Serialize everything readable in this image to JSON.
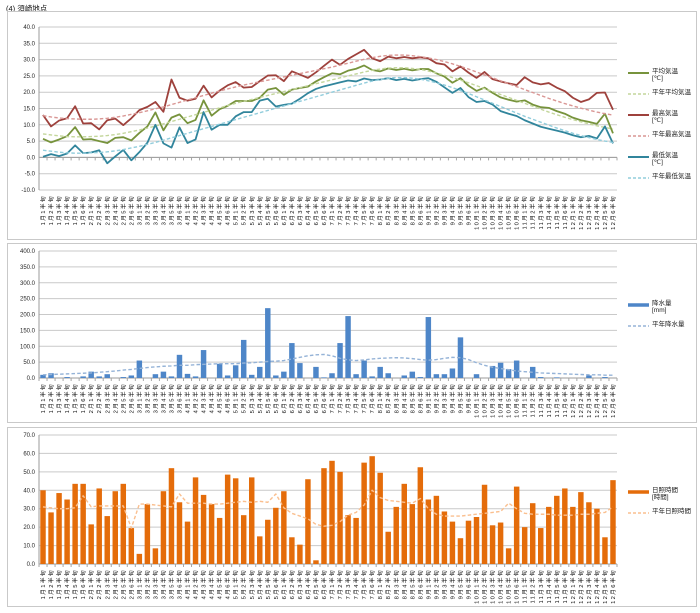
{
  "title": "(4) 須崎地点",
  "categories": [
    "1月1半旬",
    "1月2半旬",
    "1月3半旬",
    "1月4半旬",
    "1月5半旬",
    "1月6半旬",
    "2月1半旬",
    "2月2半旬",
    "2月3半旬",
    "2月4半旬",
    "2月5半旬",
    "2月6半旬",
    "3月1半旬",
    "3月2半旬",
    "3月3半旬",
    "3月4半旬",
    "3月5半旬",
    "3月6半旬",
    "4月1半旬",
    "4月2半旬",
    "4月3半旬",
    "4月4半旬",
    "4月5半旬",
    "4月6半旬",
    "5月1半旬",
    "5月2半旬",
    "5月3半旬",
    "5月4半旬",
    "5月5半旬",
    "5月6半旬",
    "6月1半旬",
    "6月2半旬",
    "6月3半旬",
    "6月4半旬",
    "6月5半旬",
    "6月6半旬",
    "7月1半旬",
    "7月2半旬",
    "7月3半旬",
    "7月4半旬",
    "7月5半旬",
    "7月6半旬",
    "8月1半旬",
    "8月2半旬",
    "8月3半旬",
    "8月4半旬",
    "8月5半旬",
    "8月6半旬",
    "9月1半旬",
    "9月2半旬",
    "9月3半旬",
    "9月4半旬",
    "9月5半旬",
    "9月6半旬",
    "10月1半旬",
    "10月2半旬",
    "10月3半旬",
    "10月4半旬",
    "10月5半旬",
    "10月6半旬",
    "11月1半旬",
    "11月2半旬",
    "11月3半旬",
    "11月4半旬",
    "11月5半旬",
    "11月6半旬",
    "12月1半旬",
    "12月2半旬",
    "12月3半旬",
    "12月4半旬",
    "12月5半旬",
    "12月6半旬"
  ],
  "chart_data": [
    {
      "type": "line",
      "title": "気温",
      "ylim": [
        -10,
        40
      ],
      "yticks": [
        "40.0",
        "35.0",
        "30.0",
        "25.0",
        "20.0",
        "15.0",
        "10.0",
        "5.0",
        "0.0",
        "-5.0",
        "-10.0"
      ],
      "grid": true,
      "legend_position": "right",
      "series": [
        {
          "name": "平均気温",
          "unit": "[℃]",
          "style": "solid",
          "color": "#77933C",
          "values": [
            5.7,
            4.6,
            5.5,
            6.5,
            9.3,
            5.5,
            5.6,
            5.0,
            4.4,
            6.0,
            6.2,
            5.2,
            7.5,
            9.5,
            13.8,
            8.3,
            12.2,
            13.2,
            10.5,
            11.5,
            17.5,
            12.8,
            14.8,
            15.8,
            17.3,
            17.3,
            17.3,
            18.3,
            20.8,
            21.3,
            19.2,
            20.8,
            21.3,
            21.7,
            23.3,
            24.6,
            25.8,
            25.5,
            26.6,
            27.2,
            28.2,
            26.8,
            26.4,
            27.3,
            26.8,
            27.2,
            26.7,
            27.1,
            27.1,
            25.8,
            24.8,
            22.9,
            24.3,
            22.0,
            20.4,
            21.4,
            19.8,
            18.4,
            17.7,
            17.1,
            17.5,
            16.2,
            15.4,
            15.2,
            14.2,
            13.4,
            12.2,
            11.4,
            10.9,
            10.3,
            13.4,
            7.4
          ]
        },
        {
          "name": "平年平均気温",
          "unit": "",
          "style": "dashed",
          "color": "#C3D69B",
          "values": [
            7.2,
            6.9,
            6.6,
            6.4,
            6.3,
            6.3,
            6.4,
            6.5,
            6.7,
            7.0,
            7.4,
            7.9,
            8.4,
            9.0,
            9.6,
            10.3,
            11.0,
            11.7,
            12.4,
            13.1,
            13.8,
            14.5,
            15.2,
            15.9,
            16.6,
            17.2,
            17.8,
            18.4,
            19.0,
            19.6,
            20.2,
            20.8,
            21.4,
            22.0,
            22.6,
            23.2,
            23.8,
            24.4,
            25.0,
            25.6,
            26.2,
            26.7,
            27.1,
            27.4,
            27.5,
            27.5,
            27.3,
            27.0,
            26.5,
            25.9,
            25.2,
            24.5,
            23.7,
            22.9,
            22.0,
            21.1,
            20.2,
            19.3,
            18.4,
            17.5,
            16.6,
            15.7,
            14.8,
            13.9,
            13.1,
            12.3,
            11.6,
            10.9,
            10.3,
            9.7,
            9.2,
            8.7
          ]
        },
        {
          "name": "最高気温",
          "unit": "[℃]",
          "style": "solid",
          "color": "#9E413C",
          "values": [
            13.0,
            9.5,
            11.3,
            12.0,
            15.7,
            10.4,
            10.5,
            8.6,
            11.4,
            11.9,
            9.9,
            12.0,
            14.5,
            15.5,
            17.0,
            14.0,
            23.9,
            18.3,
            17.4,
            18.0,
            22.0,
            18.4,
            20.5,
            22.1,
            23.1,
            21.4,
            21.6,
            23.4,
            25.1,
            25.2,
            23.4,
            26.4,
            25.4,
            24.4,
            26.1,
            28.1,
            30.0,
            28.4,
            30.2,
            31.6,
            33.0,
            30.4,
            29.5,
            30.9,
            30.4,
            30.8,
            30.4,
            30.7,
            30.4,
            28.9,
            28.5,
            26.4,
            27.9,
            26.0,
            24.4,
            26.2,
            24.0,
            23.3,
            22.7,
            22.2,
            24.6,
            23.0,
            22.4,
            22.8,
            21.4,
            20.3,
            18.3,
            17.0,
            17.8,
            19.8,
            19.9,
            14.6
          ]
        },
        {
          "name": "平年最高気温",
          "unit": "",
          "style": "dashed",
          "color": "#D99694",
          "values": [
            12.8,
            12.4,
            12.1,
            11.9,
            11.8,
            11.7,
            11.7,
            11.8,
            12.0,
            12.3,
            12.7,
            13.2,
            13.7,
            14.3,
            14.9,
            15.5,
            16.2,
            16.9,
            17.6,
            18.3,
            19.0,
            19.7,
            20.4,
            21.0,
            21.6,
            22.2,
            22.7,
            23.2,
            23.7,
            24.2,
            24.7,
            25.2,
            25.7,
            26.2,
            26.7,
            27.2,
            27.7,
            28.3,
            28.9,
            29.5,
            30.1,
            30.6,
            31.0,
            31.3,
            31.4,
            31.4,
            31.2,
            30.9,
            30.5,
            30.0,
            29.4,
            28.7,
            27.9,
            27.1,
            26.2,
            25.3,
            24.4,
            23.5,
            22.6,
            21.7,
            20.8,
            19.9,
            19.0,
            18.1,
            17.3,
            16.5,
            15.8,
            15.1,
            14.5,
            13.9,
            13.4,
            13.0
          ]
        },
        {
          "name": "最低気温",
          "unit": "[℃]",
          "style": "solid",
          "color": "#31859C",
          "values": [
            0.2,
            1.0,
            0.4,
            1.2,
            3.7,
            1.3,
            1.5,
            2.2,
            -1.8,
            0.3,
            2.3,
            -0.9,
            1.6,
            4.5,
            10.0,
            4.3,
            3.0,
            9.2,
            4.4,
            5.5,
            13.9,
            8.5,
            10.0,
            10.0,
            12.6,
            13.9,
            13.9,
            17.4,
            18.0,
            15.6,
            16.1,
            16.5,
            18.0,
            19.7,
            21.0,
            21.8,
            22.4,
            23.0,
            23.6,
            23.3,
            24.2,
            23.7,
            23.9,
            24.3,
            23.7,
            24.1,
            23.6,
            24.0,
            24.3,
            23.2,
            21.5,
            19.8,
            21.3,
            18.5,
            17.0,
            17.3,
            16.2,
            14.2,
            13.4,
            12.7,
            11.4,
            10.4,
            9.4,
            8.8,
            8.2,
            7.6,
            6.8,
            6.2,
            6.6,
            5.8,
            9.5,
            4.3
          ]
        },
        {
          "name": "平年最低気温",
          "unit": "",
          "style": "dashed",
          "color": "#92CDDC",
          "values": [
            2.2,
            1.9,
            1.6,
            1.4,
            1.3,
            1.3,
            1.4,
            1.5,
            1.7,
            2.0,
            2.4,
            2.9,
            3.4,
            4.0,
            4.6,
            5.3,
            6.0,
            6.7,
            7.4,
            8.1,
            8.8,
            9.5,
            10.2,
            10.9,
            11.6,
            12.3,
            13.0,
            13.7,
            14.4,
            15.1,
            15.8,
            16.5,
            17.2,
            17.9,
            18.6,
            19.3,
            20.0,
            20.7,
            21.4,
            22.1,
            22.8,
            23.4,
            23.9,
            24.3,
            24.5,
            24.5,
            24.3,
            24.0,
            23.5,
            22.9,
            22.2,
            21.4,
            20.5,
            19.6,
            18.6,
            17.6,
            16.6,
            15.6,
            14.6,
            13.6,
            12.6,
            11.7,
            10.8,
            9.9,
            9.0,
            8.2,
            7.4,
            6.7,
            6.1,
            5.5,
            5.0,
            4.6
          ]
        }
      ]
    },
    {
      "type": "bar",
      "title": "降水量",
      "ylim": [
        0,
        400
      ],
      "yticks": [
        "400.0",
        "350.0",
        "300.0",
        "250.0",
        "200.0",
        "150.0",
        "100.0",
        "50.0",
        "0.0"
      ],
      "grid": true,
      "legend_position": "right",
      "series": [
        {
          "name": "降水量",
          "unit": "[mm]",
          "style": "bar",
          "color": "#4E86C8",
          "values": [
            10,
            15,
            0,
            3,
            0,
            5,
            20,
            5,
            12,
            0,
            3,
            8,
            55,
            0,
            12,
            20,
            5,
            73,
            13,
            5,
            88,
            0,
            45,
            8,
            40,
            120,
            10,
            35,
            220,
            8,
            20,
            110,
            47,
            0,
            35,
            2,
            15,
            110,
            195,
            12,
            55,
            5,
            35,
            15,
            0,
            8,
            20,
            3,
            192,
            12,
            12,
            30,
            128,
            0,
            12,
            0,
            38,
            48,
            28,
            55,
            0,
            35,
            3,
            0,
            2,
            0,
            0,
            0,
            8,
            0,
            3,
            0
          ]
        },
        {
          "name": "平年降水量",
          "unit": "",
          "style": "dashed",
          "color": "#95B3D7",
          "values": [
            10,
            11,
            12,
            13,
            14,
            15,
            16,
            18,
            20,
            22,
            25,
            27,
            30,
            33,
            35,
            37,
            38,
            40,
            40,
            42,
            43,
            44,
            45,
            45,
            45,
            47,
            48,
            50,
            52,
            53,
            55,
            60,
            65,
            70,
            73,
            74,
            70,
            62,
            57,
            55,
            57,
            60,
            62,
            63,
            64,
            63,
            61,
            58,
            56,
            58,
            62,
            65,
            64,
            58,
            48,
            40,
            34,
            30,
            26,
            22,
            20,
            18,
            16,
            15,
            14,
            13,
            12,
            11,
            10,
            10,
            9,
            9
          ]
        }
      ]
    },
    {
      "type": "bar",
      "title": "日照時間",
      "ylim": [
        0,
        70
      ],
      "yticks": [
        "70.0",
        "60.0",
        "50.0",
        "40.0",
        "30.0",
        "20.0",
        "10.0",
        "0.0"
      ],
      "grid": true,
      "legend_position": "right",
      "series": [
        {
          "name": "日照時間",
          "unit": "[時間]",
          "style": "bar",
          "color": "#E46C0A",
          "values": [
            40,
            28,
            38.5,
            35,
            43.5,
            43.5,
            21.5,
            41,
            26,
            39.5,
            43.5,
            19.5,
            5.5,
            32.5,
            8.5,
            39.5,
            52,
            33.5,
            23,
            47,
            37.5,
            32.5,
            25,
            48.5,
            46.5,
            26.5,
            47,
            15,
            24,
            30.5,
            39.5,
            14.5,
            10.5,
            46,
            2,
            52,
            56,
            50,
            26.5,
            25,
            55,
            58.5,
            49.5,
            17.5,
            31,
            43.5,
            32.5,
            52.5,
            35,
            37,
            28.5,
            23,
            14,
            23.5,
            25.5,
            43,
            21,
            22.5,
            8.5,
            42,
            20,
            33,
            19.5,
            31,
            37,
            41,
            31,
            39,
            33.5,
            30,
            14.5,
            45.5
          ]
        },
        {
          "name": "平年日照時間",
          "unit": "",
          "style": "dashed",
          "color": "#FABF8F",
          "values": [
            31,
            30.5,
            30,
            30,
            30.5,
            37,
            31,
            31.5,
            31.5,
            31.5,
            31.5,
            19.5,
            32.5,
            32.5,
            32,
            31.5,
            31,
            38,
            33,
            33,
            33,
            32.5,
            32.5,
            33,
            33.5,
            34,
            33.5,
            34,
            33.5,
            38,
            30.5,
            27.5,
            26,
            24.5,
            21.5,
            20.5,
            21,
            23,
            26.5,
            28,
            32,
            40,
            36,
            34.5,
            34,
            33.5,
            33,
            35.5,
            30,
            27,
            26,
            26,
            26,
            26.5,
            27,
            27.5,
            28,
            28.5,
            33,
            30,
            27.5,
            27,
            27,
            27,
            26.5,
            26.5,
            26.5,
            27,
            27,
            27.5,
            28,
            31
          ]
        }
      ]
    }
  ]
}
